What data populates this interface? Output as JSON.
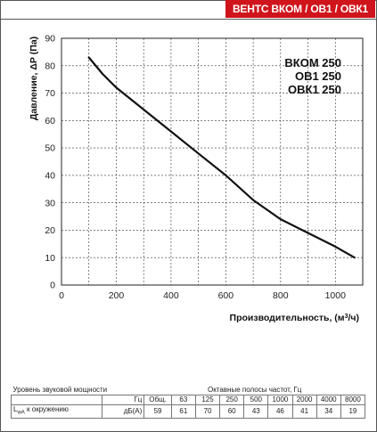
{
  "badge": "ВЕНТС ВКОМ / ОВ1 / ОВК1",
  "models": [
    "ВКОМ 250",
    "ОВ1 250",
    "ОВК1 250"
  ],
  "chart_data": {
    "type": "line",
    "xlabel": "Производительность, (м³/ч)",
    "ylabel": "Давление, ΔР (Па)",
    "xlim": [
      0,
      1100
    ],
    "ylim": [
      0,
      90
    ],
    "xticks": [
      0,
      200,
      400,
      600,
      800,
      1000
    ],
    "yticks": [
      0,
      10,
      20,
      30,
      40,
      50,
      60,
      70,
      80,
      90
    ],
    "grid": true,
    "series": [
      {
        "x": [
          100,
          150,
          200,
          300,
          400,
          500,
          600,
          700,
          800,
          900,
          1000,
          1070
        ],
        "y": [
          83,
          77,
          72,
          64,
          56,
          48,
          40,
          31,
          24,
          19,
          14,
          10
        ]
      }
    ]
  },
  "noise_table": {
    "caption_left": "Уровень звуковой мощности",
    "caption_right": "Октавные полосы частот, Гц",
    "header": [
      "Гц",
      "Общ.",
      "63",
      "125",
      "250",
      "500",
      "1000",
      "2000",
      "4000",
      "8000"
    ],
    "row_label_main": "L",
    "row_label_sub": "wA",
    "row_label_rest": " к окружению",
    "row_unit": "дБ(А)",
    "values": [
      "59",
      "61",
      "70",
      "60",
      "43",
      "46",
      "41",
      "34",
      "19"
    ]
  },
  "colors": {
    "badge": "#d0141c",
    "curve": "#111111",
    "grid": "#333333"
  }
}
